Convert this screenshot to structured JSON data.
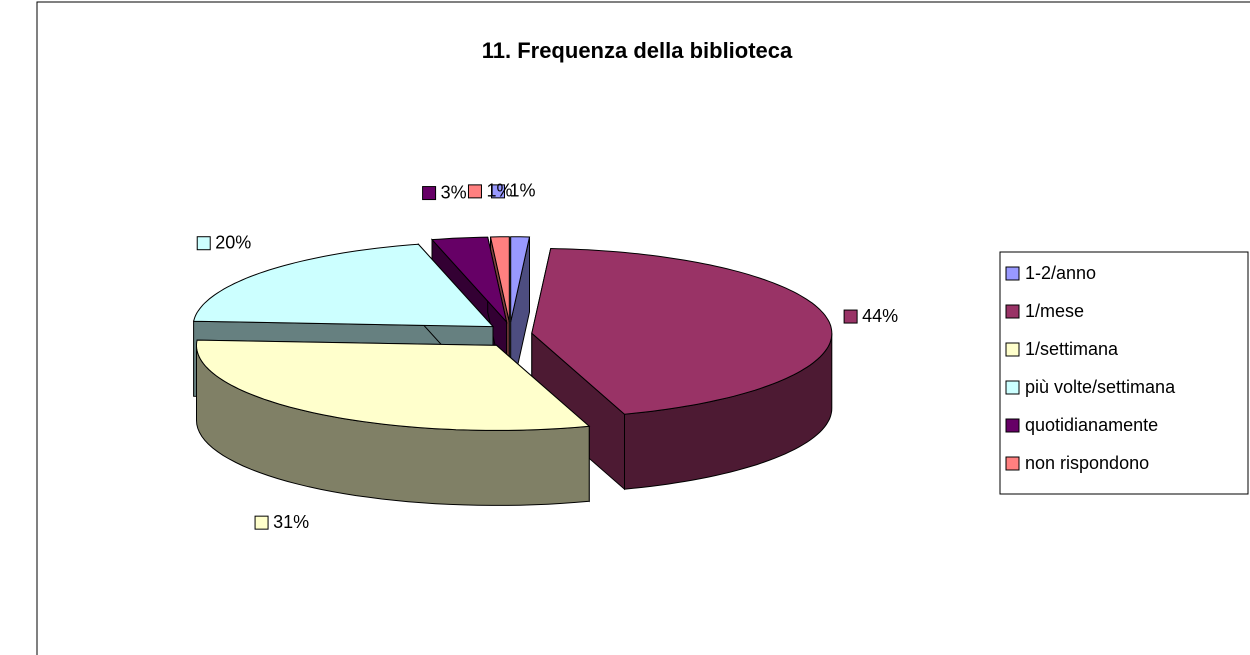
{
  "chart_data": {
    "type": "pie3d",
    "title": "11. Frequenza della biblioteca",
    "categories": [
      "1-2/anno",
      "1/mese",
      "1/settimana",
      "più volte/settimana",
      "quotidianamente",
      "non rispondono"
    ],
    "values": [
      1,
      44,
      31,
      20,
      3,
      1
    ],
    "value_labels": [
      "1%",
      "44%",
      "31%",
      "20%",
      "3%",
      "1%"
    ],
    "colors": [
      "#9999ff",
      "#993366",
      "#ffffcc",
      "#ccffff",
      "#660066",
      "#ff8080"
    ],
    "legend": "right"
  }
}
